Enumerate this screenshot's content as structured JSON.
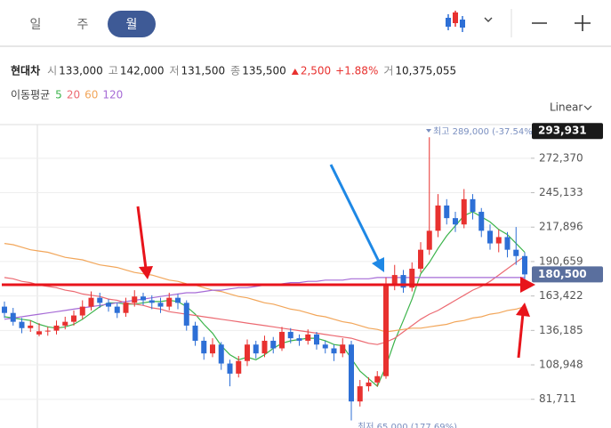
{
  "tabs": [
    "일",
    "주",
    "월"
  ],
  "selected_tab": 2,
  "info": {
    "name": "현대차",
    "items": [
      {
        "label": "시",
        "value": "133,000"
      },
      {
        "label": "고",
        "value": "142,000"
      },
      {
        "label": "저",
        "value": "131,500"
      },
      {
        "label": "종",
        "value": "135,500"
      }
    ],
    "change": "2,500",
    "change_pct": "+1.88%",
    "volume": {
      "label": "거",
      "value": "10,375,055"
    }
  },
  "chart_data": {
    "type": "candlestick",
    "scale": "Linear",
    "legend_title": "이동평균",
    "up_color": "#e8312f",
    "down_color": "#2d6fd6",
    "open": [
      155000,
      150000,
      143000,
      138000,
      133000,
      135500,
      136000,
      140000,
      143000,
      148000,
      155000,
      162000,
      158000,
      155000,
      150000,
      158000,
      163000,
      160000,
      158000,
      155000,
      162000,
      158000,
      140000,
      128000,
      118000,
      125000,
      110000,
      102000,
      112000,
      125000,
      118000,
      128000,
      122000,
      135000,
      130000,
      128000,
      133000,
      125000,
      122000,
      118000,
      125000,
      80000,
      92000,
      95000,
      100000,
      172000,
      180000,
      170000,
      185000,
      200000,
      215000,
      235000,
      225000,
      220000,
      240000,
      230000,
      215000,
      205000,
      210000,
      200000,
      195000
    ],
    "high": [
      159000,
      154000,
      146000,
      144000,
      142000,
      139000,
      144000,
      147000,
      152000,
      160000,
      167000,
      166000,
      161000,
      158000,
      162000,
      168000,
      166000,
      164000,
      162000,
      166000,
      165000,
      160000,
      143000,
      131000,
      130000,
      127000,
      113000,
      116000,
      129000,
      128000,
      132000,
      131000,
      139000,
      138000,
      133000,
      137000,
      135000,
      128000,
      125000,
      130000,
      128000,
      97000,
      99000,
      104000,
      178000,
      188000,
      184000,
      190000,
      206000,
      289000,
      244000,
      240000,
      230000,
      248000,
      244000,
      233000,
      220000,
      216000,
      214000,
      218000,
      198000
    ],
    "low": [
      146000,
      140000,
      134000,
      135000,
      131500,
      132000,
      133000,
      137000,
      140000,
      145000,
      152000,
      154000,
      151000,
      146000,
      147000,
      155000,
      156000,
      153000,
      150000,
      152000,
      153000,
      136000,
      124000,
      113000,
      115000,
      105000,
      92000,
      99000,
      108000,
      114000,
      115000,
      118000,
      120000,
      126000,
      124000,
      125000,
      121000,
      118000,
      112000,
      115000,
      65000,
      76000,
      88000,
      92000,
      98000,
      168000,
      166000,
      167000,
      182000,
      196000,
      210000,
      220000,
      214000,
      217000,
      224000,
      210000,
      200000,
      198000,
      194000,
      188000,
      176000
    ],
    "close": [
      150000,
      143000,
      138000,
      140000,
      135500,
      136000,
      140000,
      143000,
      148000,
      155000,
      162000,
      158000,
      155000,
      150000,
      158000,
      163000,
      160000,
      158000,
      155000,
      162000,
      158000,
      140000,
      128000,
      118000,
      125000,
      110000,
      102000,
      112000,
      125000,
      118000,
      128000,
      122000,
      135000,
      130000,
      128000,
      133000,
      125000,
      122000,
      118000,
      125000,
      80000,
      92000,
      95000,
      100000,
      172000,
      180000,
      170000,
      185000,
      200000,
      215000,
      235000,
      225000,
      220000,
      240000,
      230000,
      215000,
      205000,
      210000,
      200000,
      195000,
      180500
    ],
    "series": [
      {
        "name": "5",
        "color": "#3cb44b",
        "values": [
          147000,
          146000,
          145000,
          144000,
          141000,
          139000,
          138000,
          139000,
          141000,
          145000,
          150000,
          155000,
          158000,
          158000,
          157000,
          157000,
          158000,
          159000,
          159000,
          160000,
          159000,
          155000,
          149000,
          141000,
          134000,
          124000,
          117000,
          113000,
          115000,
          113000,
          117000,
          122000,
          126000,
          128000,
          129000,
          130000,
          130000,
          128000,
          125000,
          124000,
          114000,
          104000,
          98000,
          92000,
          108000,
          128000,
          144000,
          161000,
          181000,
          190000,
          201000,
          211000,
          219000,
          227000,
          230000,
          226000,
          222000,
          216000,
          212000,
          205000,
          198000
        ]
      },
      {
        "name": "20",
        "color": "#ec6a72",
        "values": [
          178000,
          177000,
          175000,
          174000,
          172000,
          171000,
          170000,
          168000,
          167000,
          165000,
          164000,
          163000,
          161000,
          160000,
          158000,
          157000,
          156000,
          154000,
          153000,
          151000,
          150000,
          149000,
          148000,
          147000,
          146000,
          145000,
          144000,
          143000,
          142000,
          141000,
          140000,
          139000,
          138000,
          137000,
          136000,
          135000,
          134000,
          133000,
          132000,
          131000,
          130000,
          128000,
          126000,
          125000,
          127000,
          130000,
          135000,
          140000,
          145000,
          149000,
          152000,
          156000,
          160000,
          164000,
          168000,
          171000,
          175000,
          180000,
          185000,
          190000,
          195000
        ]
      },
      {
        "name": "60",
        "color": "#f2a65a",
        "values": [
          205000,
          204000,
          202000,
          200000,
          199000,
          198000,
          196000,
          194000,
          193000,
          192000,
          190000,
          188000,
          187000,
          186000,
          184000,
          182000,
          181000,
          180000,
          178000,
          176000,
          175000,
          173000,
          172000,
          170000,
          168000,
          167000,
          165000,
          163000,
          162000,
          160000,
          158000,
          157000,
          155000,
          153000,
          152000,
          150000,
          148000,
          147000,
          145000,
          143000,
          142000,
          140000,
          138000,
          137000,
          135000,
          136000,
          137000,
          138000,
          138000,
          139000,
          140000,
          141000,
          143000,
          144000,
          146000,
          147000,
          149000,
          150000,
          152000,
          153000,
          155000
        ]
      },
      {
        "name": "120",
        "color": "#a66bd6",
        "values": [
          145000,
          146000,
          147000,
          148000,
          149000,
          150000,
          151000,
          152000,
          153000,
          154000,
          155000,
          156000,
          157000,
          158000,
          159000,
          160000,
          161000,
          162000,
          163000,
          164000,
          165000,
          166000,
          166000,
          167000,
          168000,
          168000,
          169000,
          170000,
          170000,
          171000,
          172000,
          172000,
          173000,
          174000,
          174000,
          175000,
          175000,
          176000,
          176000,
          176000,
          177000,
          177000,
          177000,
          178000,
          178000,
          178000,
          178000,
          178000,
          178000,
          178000,
          178000,
          178000,
          178000,
          178000,
          178000,
          178000,
          178000,
          178000,
          178000,
          178000,
          178000
        ]
      }
    ],
    "ylim": [
      59000,
      299000
    ],
    "yticks": [
      {
        "value": 272370,
        "label": "272,370"
      },
      {
        "value": 245133,
        "label": "245,133"
      },
      {
        "value": 217896,
        "label": "217,896"
      },
      {
        "value": 190659,
        "label": "190,659"
      },
      {
        "value": 163422,
        "label": "163,422"
      },
      {
        "value": 136185,
        "label": "136,185"
      },
      {
        "value": 108948,
        "label": "108,948"
      },
      {
        "value": 81711,
        "label": "81,711"
      }
    ],
    "grid": true,
    "price_badges": [
      {
        "value": 293931,
        "label": "293,931",
        "color": "#1a1a1a"
      },
      {
        "value": 180500,
        "label": "180,500",
        "color": "#5a6f9e"
      }
    ],
    "annotations": {
      "high": "최고 289,000 (-37.54%)",
      "low": "최저 65,000 (177.69%)"
    }
  }
}
